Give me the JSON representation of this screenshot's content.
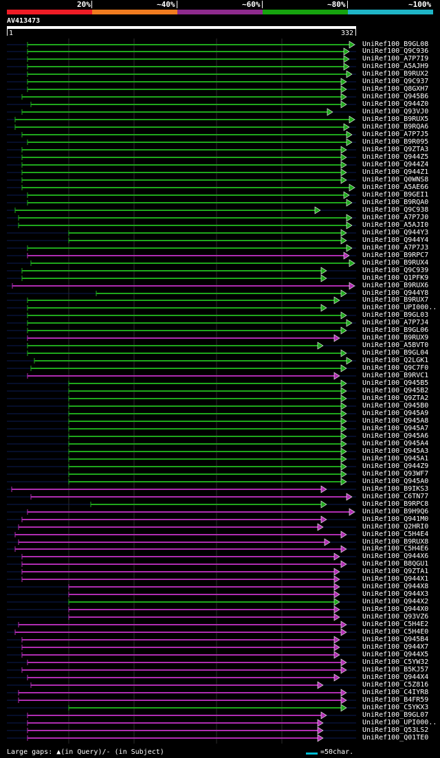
{
  "scale": {
    "labels": [
      "20%",
      "~40%",
      "~60%",
      "~80%",
      "~100%"
    ],
    "colors": [
      "#ee1c25",
      "#ef7b1f",
      "#8d2a8c",
      "#16a30e",
      "#1fb5c7"
    ]
  },
  "query": {
    "name": "AV413473",
    "start": "1",
    "end": "332",
    "length": 332
  },
  "legend": {
    "gaps_text": "Large gaps: ▲(in Query)/- (in Subject)",
    "scale_text": "=50char."
  },
  "chart_data": {
    "type": "alignment",
    "title": "AV413473",
    "x_range": [
      1,
      332
    ],
    "hits": [
      {
        "name": "UniRef100_B9GL08",
        "start": 40,
        "end": 516,
        "color": "#1fa81c"
      },
      {
        "name": "UniRef100_Q9C936",
        "start": 40,
        "end": 508,
        "color": "#1fa81c"
      },
      {
        "name": "UniRef100_A7P7I9",
        "start": 40,
        "end": 508,
        "color": "#1fa81c"
      },
      {
        "name": "UniRef100_A5AJH9",
        "start": 40,
        "end": 508,
        "color": "#1fa81c"
      },
      {
        "name": "UniRef100_B9RUX2",
        "start": 40,
        "end": 512,
        "color": "#1fa81c"
      },
      {
        "name": "UniRef100_Q9C937",
        "start": 40,
        "end": 504,
        "color": "#1fa81c"
      },
      {
        "name": "UniRef100_Q8GXH7",
        "start": 40,
        "end": 504,
        "color": "#1fa81c"
      },
      {
        "name": "UniRef100_Q945B6",
        "start": 32,
        "end": 504,
        "color": "#1fa81c"
      },
      {
        "name": "UniRef100_Q944Z0",
        "start": 45,
        "end": 504,
        "color": "#1fa81c"
      },
      {
        "name": "UniRef100_Q93VJ0",
        "start": 32,
        "end": 484,
        "color": "#1fa81c"
      },
      {
        "name": "UniRef100_B9RUX5",
        "start": 22,
        "end": 516,
        "color": "#1fa81c"
      },
      {
        "name": "UniRef100_B9RQA6",
        "start": 22,
        "end": 508,
        "color": "#1fa81c"
      },
      {
        "name": "UniRef100_A7P7J5",
        "start": 32,
        "end": 512,
        "color": "#1fa81c"
      },
      {
        "name": "UniRef100_B9R095",
        "start": 40,
        "end": 512,
        "color": "#1fa81c"
      },
      {
        "name": "UniRef100_Q9ZTA3",
        "start": 32,
        "end": 504,
        "color": "#1fa81c"
      },
      {
        "name": "UniRef100_Q944Z5",
        "start": 32,
        "end": 504,
        "color": "#1fa81c"
      },
      {
        "name": "UniRef100_Q944Z4",
        "start": 32,
        "end": 504,
        "color": "#1fa81c"
      },
      {
        "name": "UniRef100_Q944Z1",
        "start": 32,
        "end": 504,
        "color": "#1fa81c"
      },
      {
        "name": "UniRef100_Q0WNS8",
        "start": 32,
        "end": 504,
        "color": "#1fa81c"
      },
      {
        "name": "UniRef100_A5AE66",
        "start": 32,
        "end": 516,
        "color": "#1fa81c"
      },
      {
        "name": "UniRef100_B9GEI1",
        "start": 40,
        "end": 508,
        "color": "#1fa81c"
      },
      {
        "name": "UniRef100_B9RQA0",
        "start": 40,
        "end": 512,
        "color": "#1fa81c"
      },
      {
        "name": "UniRef100_Q9C938",
        "start": 22,
        "end": 466,
        "color": "#1fa81c"
      },
      {
        "name": "UniRef100_A7P7J0",
        "start": 27,
        "end": 512,
        "color": "#1fa81c"
      },
      {
        "name": "UniRef100_A5AJI0",
        "start": 27,
        "end": 512,
        "color": "#1fa81c"
      },
      {
        "name": "UniRef100_Q944Y3",
        "start": 100,
        "end": 504,
        "color": "#1fa81c"
      },
      {
        "name": "UniRef100_Q944Y4",
        "start": 100,
        "end": 504,
        "color": "#1fa81c"
      },
      {
        "name": "UniRef100_A7P7J3",
        "start": 40,
        "end": 512,
        "color": "#1fa81c"
      },
      {
        "name": "UniRef100_B9RPC7",
        "start": 40,
        "end": 508,
        "color": "#b02db2"
      },
      {
        "name": "UniRef100_B9RUX4",
        "start": 45,
        "end": 516,
        "color": "#1fa81c"
      },
      {
        "name": "UniRef100_Q9C939",
        "start": 32,
        "end": 475,
        "color": "#1fa81c"
      },
      {
        "name": "UniRef100_Q1PFK9",
        "start": 32,
        "end": 475,
        "color": "#1fa81c"
      },
      {
        "name": "UniRef100_B9RUX6",
        "start": 18,
        "end": 516,
        "color": "#b02db2"
      },
      {
        "name": "UniRef100_Q944Y8",
        "start": 140,
        "end": 504,
        "color": "#1fa81c"
      },
      {
        "name": "UniRef100_B9RUX7",
        "start": 40,
        "end": 494,
        "color": "#1fa81c"
      },
      {
        "name": "UniRef100_UPI000..",
        "start": 40,
        "end": 475,
        "color": "#1fa81c"
      },
      {
        "name": "UniRef100_B9GL03",
        "start": 40,
        "end": 504,
        "color": "#1fa81c"
      },
      {
        "name": "UniRef100_A7P7J4",
        "start": 40,
        "end": 512,
        "color": "#1fa81c"
      },
      {
        "name": "UniRef100_B9GL06",
        "start": 40,
        "end": 504,
        "color": "#1fa81c"
      },
      {
        "name": "UniRef100_B9RUX9",
        "start": 40,
        "end": 494,
        "color": "#b02db2"
      },
      {
        "name": "UniRef100_A5BVT0",
        "start": 40,
        "end": 470,
        "color": "#1fa81c"
      },
      {
        "name": "UniRef100_B9GL04",
        "start": 40,
        "end": 504,
        "color": "#1fa81c"
      },
      {
        "name": "UniRef100_Q2LGK1",
        "start": 50,
        "end": 512,
        "color": "#1fa81c"
      },
      {
        "name": "UniRef100_Q9C7F0",
        "start": 45,
        "end": 504,
        "color": "#1fa81c"
      },
      {
        "name": "UniRef100_B9RVC1",
        "start": 40,
        "end": 494,
        "color": "#b02db2"
      },
      {
        "name": "UniRef100_Q945B5",
        "start": 100,
        "end": 504,
        "color": "#1fa81c"
      },
      {
        "name": "UniRef100_Q945B2",
        "start": 100,
        "end": 504,
        "color": "#1fa81c"
      },
      {
        "name": "UniRef100_Q9ZTA2",
        "start": 100,
        "end": 504,
        "color": "#1fa81c"
      },
      {
        "name": "UniRef100_Q945B0",
        "start": 100,
        "end": 504,
        "color": "#1fa81c"
      },
      {
        "name": "UniRef100_Q945A9",
        "start": 100,
        "end": 504,
        "color": "#1fa81c"
      },
      {
        "name": "UniRef100_Q945A8",
        "start": 100,
        "end": 504,
        "color": "#1fa81c"
      },
      {
        "name": "UniRef100_Q945A7",
        "start": 100,
        "end": 504,
        "color": "#1fa81c"
      },
      {
        "name": "UniRef100_Q945A6",
        "start": 100,
        "end": 504,
        "color": "#1fa81c"
      },
      {
        "name": "UniRef100_Q945A4",
        "start": 100,
        "end": 504,
        "color": "#1fa81c"
      },
      {
        "name": "UniRef100_Q945A3",
        "start": 100,
        "end": 504,
        "color": "#1fa81c"
      },
      {
        "name": "UniRef100_Q945A1",
        "start": 100,
        "end": 504,
        "color": "#1fa81c"
      },
      {
        "name": "UniRef100_Q944Z9",
        "start": 100,
        "end": 504,
        "color": "#1fa81c"
      },
      {
        "name": "UniRef100_Q93WF7",
        "start": 100,
        "end": 504,
        "color": "#1fa81c"
      },
      {
        "name": "UniRef100_Q945A0",
        "start": 100,
        "end": 504,
        "color": "#1fa81c"
      },
      {
        "name": "UniRef100_B9IKS3",
        "start": 17,
        "end": 475,
        "color": "#b02db2"
      },
      {
        "name": "UniRef100_C6TN77",
        "start": 45,
        "end": 512,
        "color": "#b02db2"
      },
      {
        "name": "UniRef100_B9RPC8",
        "start": 132,
        "end": 475,
        "color": "#1fa81c"
      },
      {
        "name": "UniRef100_B9H9Q6",
        "start": 40,
        "end": 516,
        "color": "#b02db2"
      },
      {
        "name": "UniRef100_Q941M0",
        "start": 32,
        "end": 475,
        "color": "#b02db2"
      },
      {
        "name": "UniRef100_Q2HRI0",
        "start": 27,
        "end": 470,
        "color": "#b02db2"
      },
      {
        "name": "UniRef100_C5H4E4",
        "start": 22,
        "end": 504,
        "color": "#b02db2"
      },
      {
        "name": "UniRef100_B9RUX8",
        "start": 27,
        "end": 480,
        "color": "#b02db2"
      },
      {
        "name": "UniRef100_C5H4E6",
        "start": 22,
        "end": 504,
        "color": "#b02db2"
      },
      {
        "name": "UniRef100_Q944X6",
        "start": 32,
        "end": 494,
        "color": "#b02db2"
      },
      {
        "name": "UniRef100_B8QGU1",
        "start": 32,
        "end": 504,
        "color": "#b02db2"
      },
      {
        "name": "UniRef100_Q9ZTA1",
        "start": 32,
        "end": 494,
        "color": "#b02db2"
      },
      {
        "name": "UniRef100_Q944X1",
        "start": 32,
        "end": 494,
        "color": "#b02db2"
      },
      {
        "name": "UniRef100_Q944X8",
        "start": 100,
        "end": 494,
        "color": "#b02db2"
      },
      {
        "name": "UniRef100_Q944X3",
        "start": 100,
        "end": 494,
        "color": "#b02db2"
      },
      {
        "name": "UniRef100_Q944X2",
        "start": 100,
        "end": 494,
        "color": "#1fa81c"
      },
      {
        "name": "UniRef100_Q944X0",
        "start": 100,
        "end": 494,
        "color": "#b02db2"
      },
      {
        "name": "UniRef100_Q93VZ6",
        "start": 100,
        "end": 494,
        "color": "#b02db2"
      },
      {
        "name": "UniRef100_C5H4E2",
        "start": 27,
        "end": 504,
        "color": "#b02db2"
      },
      {
        "name": "UniRef100_C5H4E0",
        "start": 22,
        "end": 504,
        "color": "#b02db2"
      },
      {
        "name": "UniRef100_Q945B4",
        "start": 32,
        "end": 494,
        "color": "#b02db2"
      },
      {
        "name": "UniRef100_Q944X7",
        "start": 32,
        "end": 494,
        "color": "#b02db2"
      },
      {
        "name": "UniRef100_Q944X5",
        "start": 32,
        "end": 494,
        "color": "#b02db2"
      },
      {
        "name": "UniRef100_C5YW32",
        "start": 40,
        "end": 504,
        "color": "#b02db2"
      },
      {
        "name": "UniRef100_B5KJ57",
        "start": 32,
        "end": 504,
        "color": "#b02db2"
      },
      {
        "name": "UniRef100_Q944X4",
        "start": 40,
        "end": 494,
        "color": "#b02db2"
      },
      {
        "name": "UniRef100_C5Z816",
        "start": 45,
        "end": 470,
        "color": "#b02db2"
      },
      {
        "name": "UniRef100_C4IYR8",
        "start": 27,
        "end": 504,
        "color": "#b02db2"
      },
      {
        "name": "UniRef100_B4FR59",
        "start": 27,
        "end": 504,
        "color": "#b02db2"
      },
      {
        "name": "UniRef100_C5YKX3",
        "start": 100,
        "end": 504,
        "color": "#1fa81c"
      },
      {
        "name": "UniRef100_B9GL07",
        "start": 40,
        "end": 475,
        "color": "#b02db2"
      },
      {
        "name": "UniRef100_UPI000..",
        "start": 40,
        "end": 470,
        "color": "#b02db2"
      },
      {
        "name": "UniRef100_Q53LS2",
        "start": 40,
        "end": 470,
        "color": "#b02db2"
      },
      {
        "name": "UniRef100_Q01TE0",
        "start": 40,
        "end": 470,
        "color": "#b02db2"
      }
    ]
  }
}
